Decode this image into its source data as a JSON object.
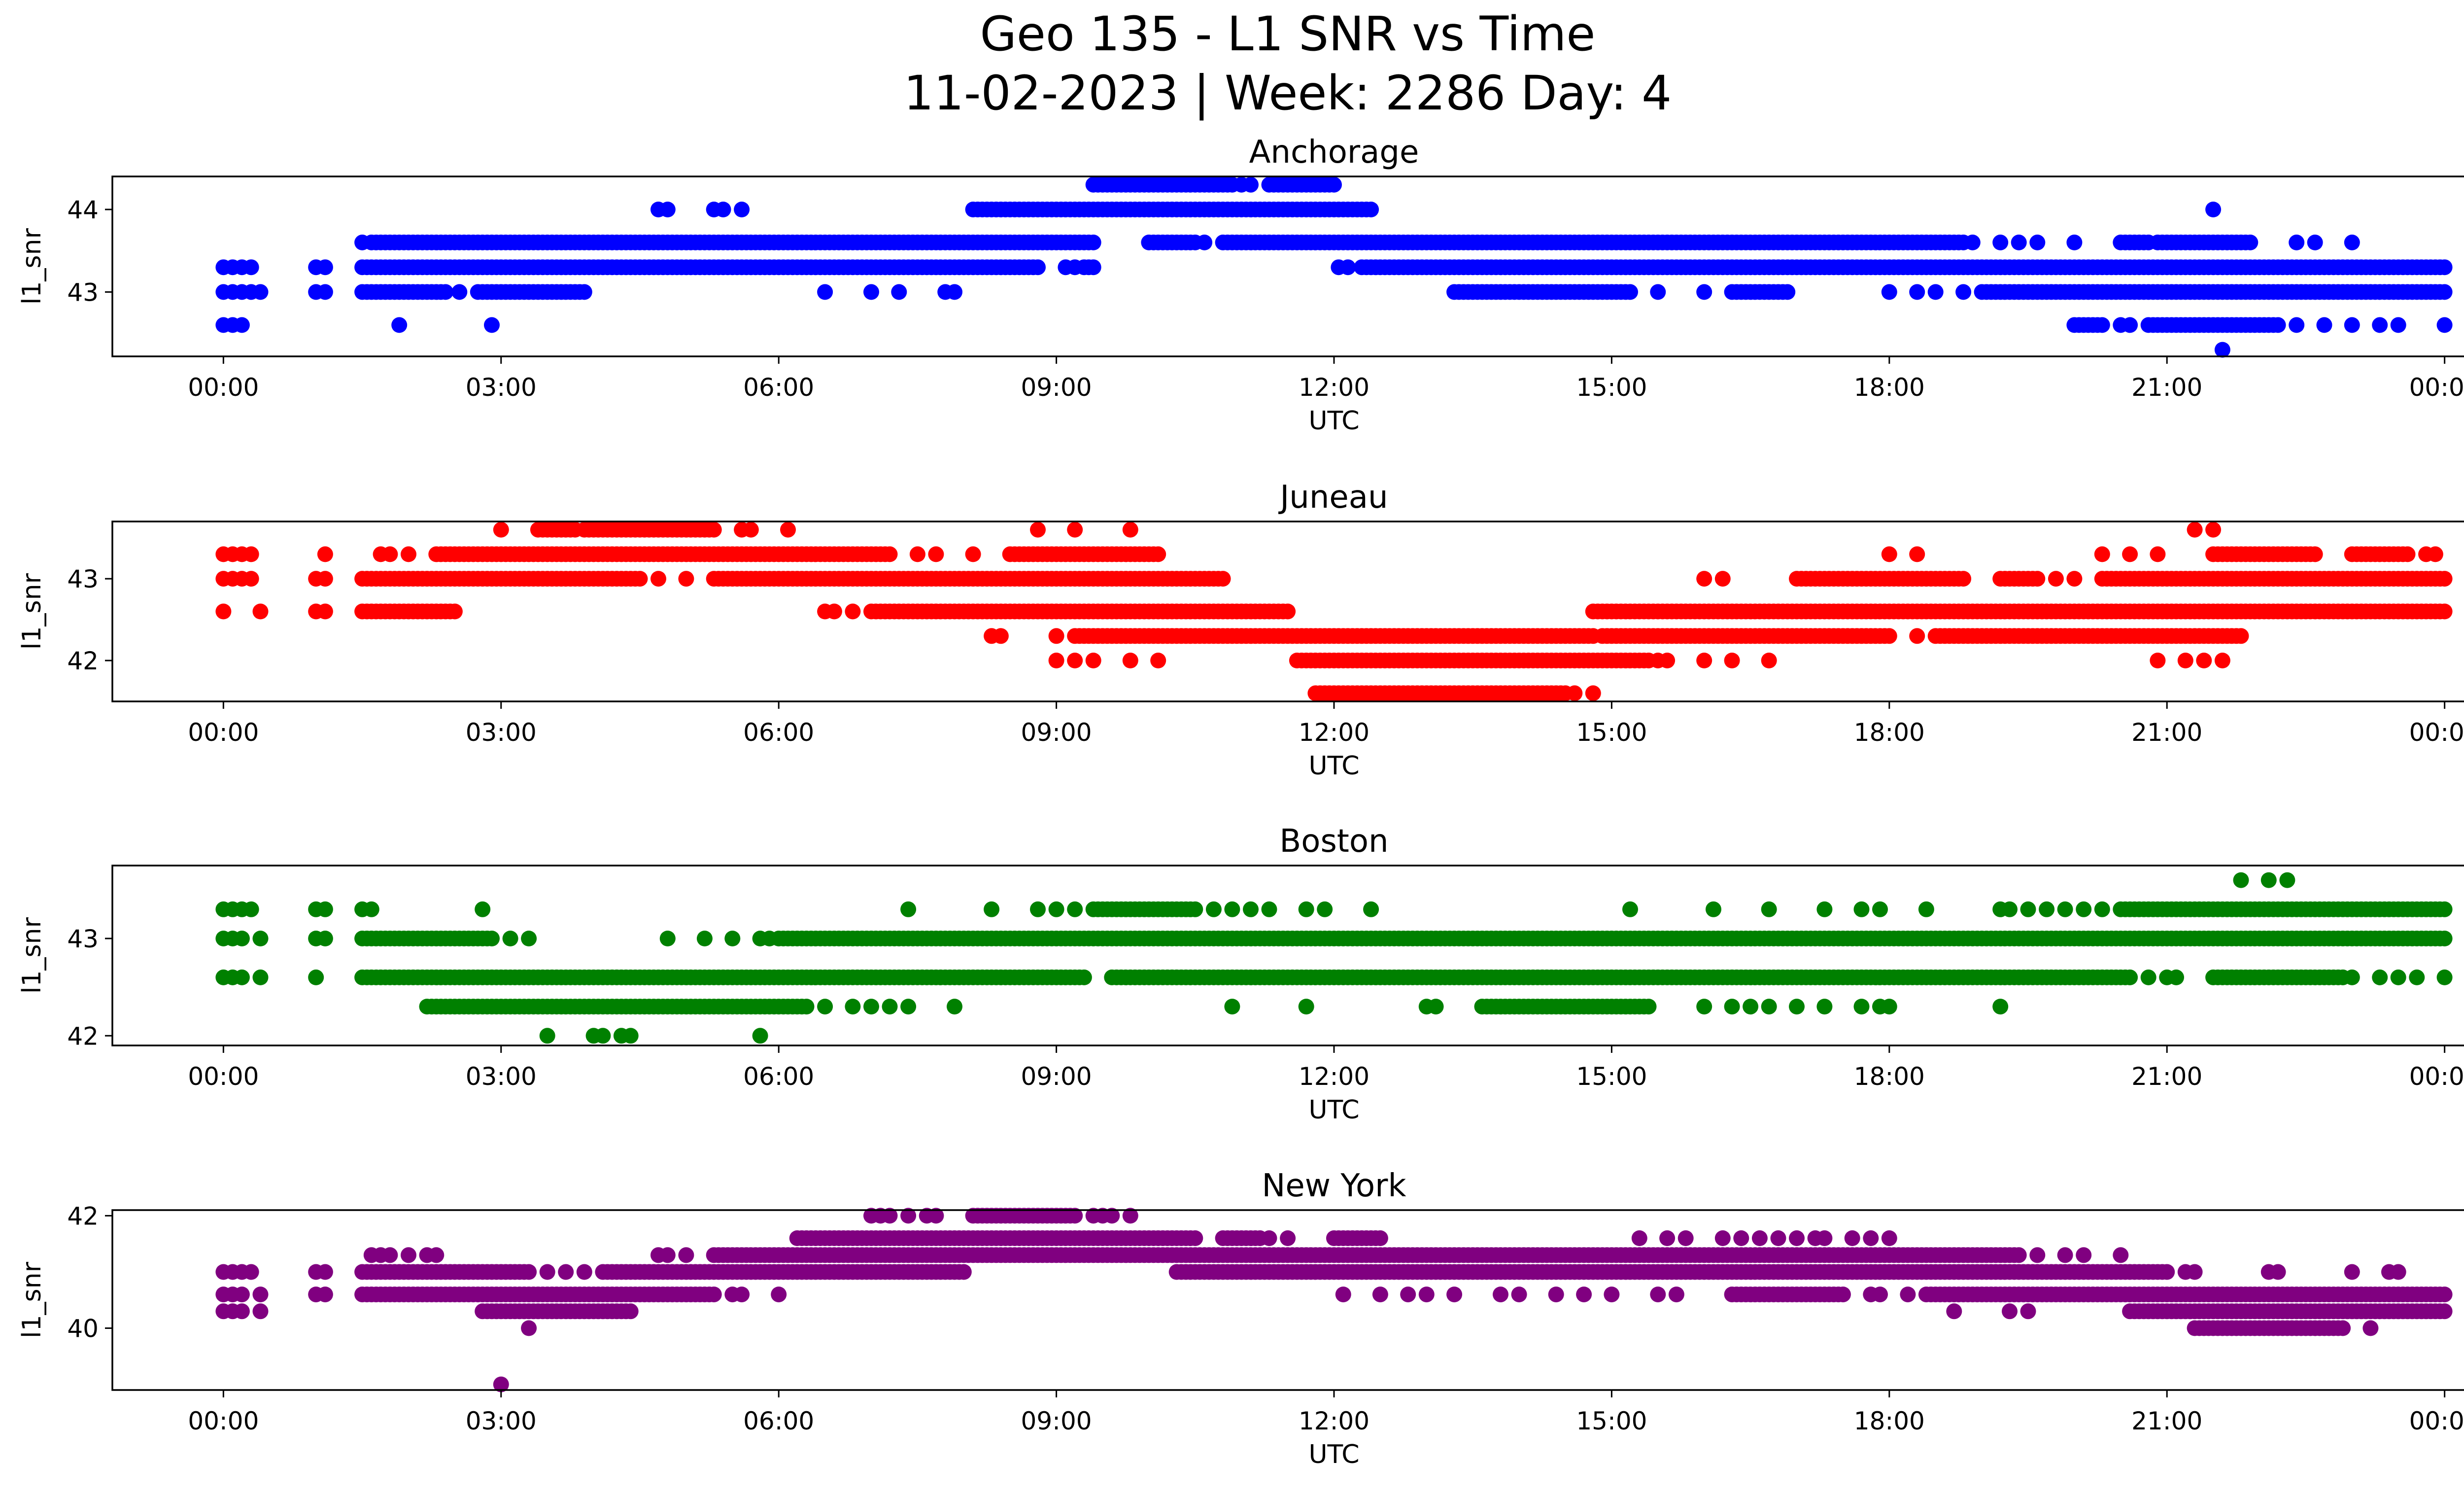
{
  "figure": {
    "title_line1": "Geo 135 - L1 SNR vs Time",
    "title_line2": "11-02-2023 | Week: 2286 Day: 4"
  },
  "chart_data": [
    {
      "type": "scatter",
      "title": "Anchorage",
      "xlabel": "UTC",
      "ylabel": "l1_snr",
      "color": "#0000ff",
      "xlim": [
        -1.2,
        25.2
      ],
      "ylim": [
        42.22,
        44.4
      ],
      "yticks": [
        43,
        44
      ],
      "xticks": [
        "00:00",
        "03:00",
        "06:00",
        "09:00",
        "12:00",
        "15:00",
        "18:00",
        "21:00",
        "00:00"
      ],
      "xtick_hours": [
        0,
        3,
        6,
        9,
        12,
        15,
        18,
        21,
        24
      ],
      "levels": [
        {
          "y": 44.3,
          "ranges": [
            [
              9.4,
              10.9
            ],
            [
              11.3,
              12.0
            ]
          ],
          "points": [
            10.9,
            11.0,
            11.1
          ]
        },
        {
          "y": 44.0,
          "ranges": [
            [
              8.1,
              9.0
            ],
            [
              9.0,
              12.4
            ]
          ],
          "points": [
            4.7,
            4.8,
            5.3,
            5.4,
            5.6,
            21.5
          ]
        },
        {
          "y": 43.6,
          "ranges": [
            [
              1.6,
              9.4
            ],
            [
              10.0,
              10.5
            ],
            [
              10.8,
              18.8
            ],
            [
              20.5,
              20.8
            ],
            [
              20.9,
              21.9
            ]
          ],
          "points": [
            1.5,
            10.6,
            18.9,
            19.2,
            19.4,
            19.6,
            20.0,
            22.4,
            22.6,
            23.0
          ]
        },
        {
          "y": 43.3,
          "ranges": [
            [
              1.5,
              8.8
            ],
            [
              9.3,
              9.4
            ],
            [
              12.3,
              24.0
            ]
          ],
          "points": [
            0.0,
            0.1,
            0.2,
            0.3,
            1.0,
            1.1,
            9.1,
            9.2,
            12.05,
            12.15
          ]
        },
        {
          "y": 43.0,
          "ranges": [
            [
              1.5,
              2.4
            ],
            [
              2.8,
              3.9
            ],
            [
              13.3,
              15.2
            ],
            [
              16.3,
              16.9
            ],
            [
              19.0,
              24.0
            ]
          ],
          "points": [
            0.0,
            0.1,
            0.2,
            0.3,
            0.4,
            1.0,
            1.1,
            2.55,
            2.75,
            6.5,
            7.0,
            7.3,
            7.8,
            7.9,
            14.6,
            14.9,
            15.5,
            16.0,
            18.0,
            18.3,
            18.5,
            18.8
          ]
        },
        {
          "y": 42.6,
          "ranges": [
            [
              20.0,
              20.3
            ],
            [
              20.8,
              22.2
            ]
          ],
          "points": [
            0.0,
            0.1,
            0.2,
            1.9,
            2.9,
            20.5,
            20.6,
            22.4,
            22.7,
            23.0,
            23.3,
            23.5,
            24.0
          ]
        },
        {
          "y": 42.3,
          "ranges": [],
          "points": [
            21.6
          ]
        }
      ]
    },
    {
      "type": "scatter",
      "title": "Juneau",
      "xlabel": "UTC",
      "ylabel": "l1_snr",
      "color": "#ff0000",
      "xlim": [
        -1.2,
        25.2
      ],
      "ylim": [
        41.5,
        43.7
      ],
      "yticks": [
        42,
        43
      ],
      "xticks": [
        "00:00",
        "03:00",
        "06:00",
        "09:00",
        "12:00",
        "15:00",
        "18:00",
        "21:00",
        "00:00"
      ],
      "xtick_hours": [
        0,
        3,
        6,
        9,
        12,
        15,
        18,
        21,
        24
      ],
      "levels": [
        {
          "y": 43.6,
          "ranges": [
            [
              3.4,
              3.8
            ],
            [
              3.9,
              5.3
            ]
          ],
          "points": [
            3.0,
            5.6,
            5.7,
            6.1,
            8.8,
            9.2,
            9.8,
            21.3,
            21.5
          ]
        },
        {
          "y": 43.3,
          "ranges": [
            [
              2.3,
              7.2
            ],
            [
              8.5,
              10.1
            ],
            [
              21.5,
              22.6
            ],
            [
              23.0,
              23.6
            ]
          ],
          "points": [
            0.0,
            0.1,
            0.2,
            0.3,
            1.1,
            1.7,
            1.8,
            2.0,
            7.5,
            7.7,
            8.1,
            18.0,
            18.3,
            20.3,
            20.6,
            20.9,
            23.8,
            23.9
          ]
        },
        {
          "y": 43.0,
          "ranges": [
            [
              1.5,
              4.5
            ],
            [
              5.3,
              10.8
            ],
            [
              17.0,
              18.8
            ],
            [
              19.2,
              19.6
            ],
            [
              20.3,
              24.0
            ]
          ],
          "points": [
            0.0,
            0.1,
            0.2,
            0.3,
            1.0,
            1.1,
            4.7,
            5.0,
            16.0,
            16.2,
            17.0,
            19.8,
            20.0
          ]
        },
        {
          "y": 42.6,
          "ranges": [
            [
              1.5,
              2.5
            ],
            [
              7.0,
              11.5
            ],
            [
              14.8,
              24.0
            ]
          ],
          "points": [
            0.0,
            0.4,
            1.0,
            1.1,
            6.5,
            6.6,
            6.8
          ]
        },
        {
          "y": 42.3,
          "ranges": [
            [
              9.2,
              14.8
            ],
            [
              14.9,
              18.0
            ],
            [
              18.5,
              21.8
            ]
          ],
          "points": [
            8.3,
            8.4,
            9.0,
            15.5,
            18.3
          ]
        },
        {
          "y": 42.0,
          "ranges": [
            [
              11.6,
              15.4
            ]
          ],
          "points": [
            9.0,
            9.2,
            9.4,
            9.8,
            10.1,
            15.5,
            15.6,
            16.0,
            16.3,
            16.7,
            20.9,
            21.2,
            21.4,
            21.6
          ]
        },
        {
          "y": 41.6,
          "ranges": [
            [
              11.8,
              14.5
            ]
          ],
          "points": [
            14.6,
            14.8
          ]
        }
      ]
    },
    {
      "type": "scatter",
      "title": "Boston",
      "xlabel": "UTC",
      "ylabel": "l1_snr",
      "color": "#008000",
      "xlim": [
        -1.2,
        25.2
      ],
      "ylim": [
        41.9,
        43.75
      ],
      "yticks": [
        42,
        43
      ],
      "xticks": [
        "00:00",
        "03:00",
        "06:00",
        "09:00",
        "12:00",
        "15:00",
        "18:00",
        "21:00",
        "00:00"
      ],
      "xtick_hours": [
        0,
        3,
        6,
        9,
        12,
        15,
        18,
        21,
        24
      ],
      "levels": [
        {
          "y": 43.6,
          "ranges": [],
          "points": [
            21.8,
            22.1,
            22.3
          ]
        },
        {
          "y": 43.3,
          "ranges": [
            [
              9.4,
              10.5
            ],
            [
              20.5,
              24.0
            ]
          ],
          "points": [
            0.0,
            0.1,
            0.2,
            0.3,
            1.0,
            1.1,
            1.5,
            1.6,
            2.8,
            7.4,
            8.3,
            8.8,
            9.0,
            9.2,
            10.5,
            10.7,
            10.9,
            11.1,
            11.3,
            11.7,
            11.9,
            12.4,
            15.2,
            16.1,
            16.7,
            17.3,
            17.7,
            17.9,
            18.4,
            19.2,
            19.3,
            19.5,
            19.7,
            19.9,
            20.1,
            20.3
          ]
        },
        {
          "y": 43.0,
          "ranges": [
            [
              1.5,
              2.9
            ],
            [
              6.0,
              14.0
            ],
            [
              14.0,
              24.0
            ]
          ],
          "points": [
            0.0,
            0.1,
            0.2,
            0.4,
            1.0,
            1.1,
            3.1,
            3.3,
            4.8,
            5.2,
            5.5,
            5.8,
            5.9,
            14.5,
            14.8,
            16.0
          ]
        },
        {
          "y": 42.6,
          "ranges": [
            [
              1.5,
              9.3
            ],
            [
              9.6,
              20.6
            ],
            [
              21.5,
              22.9
            ]
          ],
          "points": [
            0.0,
            0.1,
            0.2,
            0.4,
            1.0,
            20.8,
            21.0,
            21.1,
            23.0,
            23.3,
            23.5,
            23.7,
            24.0
          ]
        },
        {
          "y": 42.3,
          "ranges": [
            [
              2.2,
              6.3
            ],
            [
              13.6,
              15.4
            ]
          ],
          "points": [
            6.5,
            6.8,
            7.0,
            7.2,
            7.4,
            7.9,
            10.9,
            11.7,
            13.0,
            13.1,
            15.3,
            16.0,
            16.3,
            16.5,
            16.7,
            17.0,
            17.3,
            17.7,
            17.9,
            18.0,
            19.2
          ]
        },
        {
          "y": 42.0,
          "ranges": [],
          "points": [
            3.5,
            4.0,
            4.1,
            4.3,
            4.4,
            5.8
          ]
        }
      ]
    },
    {
      "type": "scatter",
      "title": "New York",
      "xlabel": "UTC",
      "ylabel": "l1_snr",
      "color": "#800080",
      "xlim": [
        -1.2,
        25.2
      ],
      "ylim": [
        38.9,
        42.1
      ],
      "yticks": [
        40,
        42
      ],
      "xticks": [
        "00:00",
        "03:00",
        "06:00",
        "09:00",
        "12:00",
        "15:00",
        "18:00",
        "21:00",
        "00:00"
      ],
      "xtick_hours": [
        0,
        3,
        6,
        9,
        12,
        15,
        18,
        21,
        24
      ],
      "levels": [
        {
          "y": 42.0,
          "ranges": [
            [
              8.1,
              9.2
            ]
          ],
          "points": [
            7.0,
            7.1,
            7.2,
            7.4,
            7.6,
            7.7,
            9.4,
            9.5,
            9.6,
            9.8
          ]
        },
        {
          "y": 41.6,
          "ranges": [
            [
              6.2,
              10.5
            ],
            [
              10.8,
              11.2
            ],
            [
              12.0,
              12.5
            ]
          ],
          "points": [
            11.3,
            11.5,
            15.3,
            15.6,
            15.8,
            16.2,
            16.4,
            16.6,
            16.8,
            17.0,
            17.2,
            17.3,
            17.6,
            17.8,
            18.0
          ]
        },
        {
          "y": 41.3,
          "ranges": [
            [
              5.3,
              8.3
            ],
            [
              8.3,
              14.2
            ],
            [
              14.2,
              18.2
            ],
            [
              18.2,
              19.4
            ]
          ],
          "points": [
            1.6,
            1.7,
            1.8,
            2.0,
            2.2,
            2.3,
            4.7,
            4.8,
            5.0,
            19.6,
            19.9,
            20.1,
            20.5
          ]
        },
        {
          "y": 41.0,
          "ranges": [
            [
              1.5,
              3.3
            ],
            [
              4.1,
              5.0
            ],
            [
              5.0,
              8.0
            ],
            [
              10.3,
              21.0
            ]
          ],
          "points": [
            0.0,
            0.1,
            0.2,
            0.3,
            1.0,
            1.1,
            3.5,
            3.7,
            3.9,
            21.2,
            21.3,
            22.1,
            22.2,
            23.0,
            23.4,
            23.5
          ]
        },
        {
          "y": 40.6,
          "ranges": [
            [
              1.5,
              2.8
            ],
            [
              2.8,
              4.3
            ],
            [
              4.3,
              5.3
            ],
            [
              16.3,
              17.5
            ],
            [
              18.4,
              24.0
            ]
          ],
          "points": [
            0.0,
            0.1,
            0.2,
            0.4,
            1.0,
            1.1,
            5.5,
            5.6,
            6.0,
            12.1,
            12.5,
            12.8,
            13.0,
            13.3,
            13.8,
            14.0,
            14.4,
            14.7,
            15.0,
            15.5,
            15.7,
            17.8,
            17.9,
            18.2
          ]
        },
        {
          "y": 40.3,
          "ranges": [
            [
              2.8,
              4.4
            ],
            [
              20.6,
              24.0
            ]
          ],
          "points": [
            0.0,
            0.1,
            0.2,
            0.4,
            18.7,
            19.3,
            19.5
          ]
        },
        {
          "y": 40.0,
          "ranges": [
            [
              21.3,
              22.9
            ]
          ],
          "points": [
            3.3,
            23.2
          ]
        },
        {
          "y": 39.0,
          "ranges": [],
          "points": [
            3.0
          ]
        }
      ]
    }
  ]
}
